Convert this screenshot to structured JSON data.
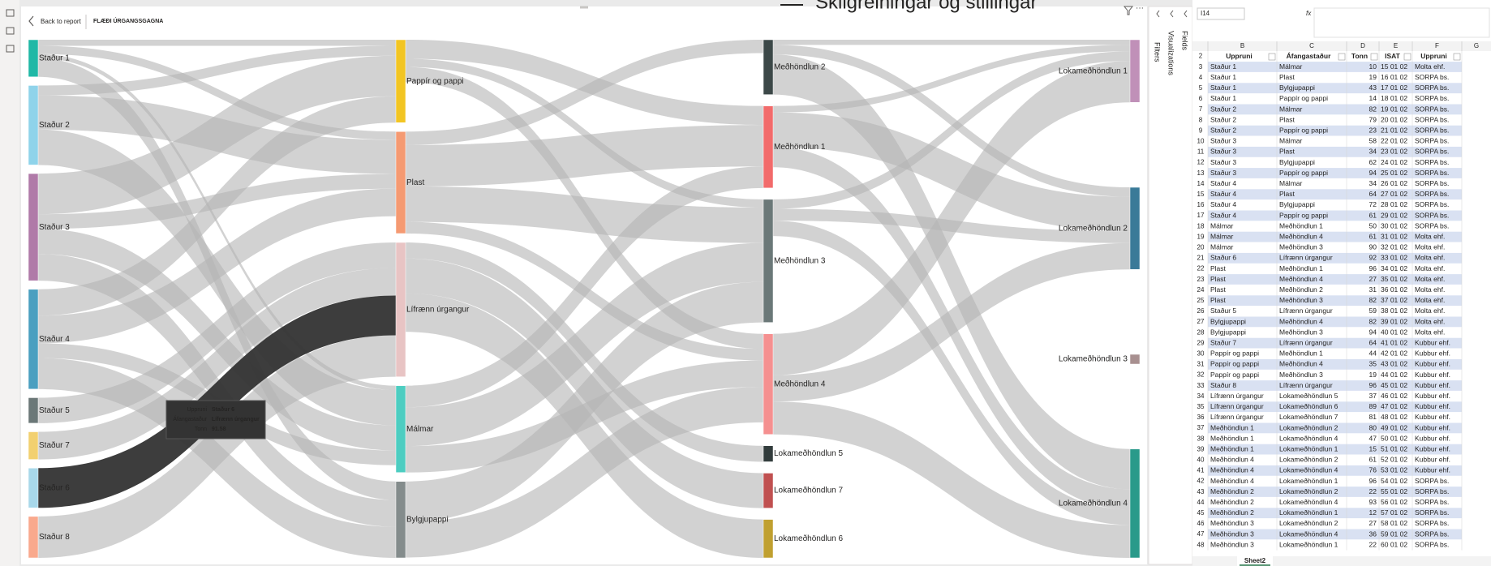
{
  "report": {
    "back": "Back to report",
    "title": "FLÆÐI ÚRGANGSGAGNA",
    "overlay_title": "Skilgreiningar og stillingar"
  },
  "panes": [
    "Filters",
    "Visualizations",
    "Fields"
  ],
  "sankey": {
    "nodes": [
      {
        "name": "Staður 1",
        "color": "#1fb8a6"
      },
      {
        "name": "Staður 2",
        "color": "#8fd3ea"
      },
      {
        "name": "Staður 3",
        "color": "#b07aa8"
      },
      {
        "name": "Staður 4",
        "color": "#4a9fc0"
      },
      {
        "name": "Staður 5",
        "color": "#6b7878"
      },
      {
        "name": "Staður 7",
        "color": "#f2d070"
      },
      {
        "name": "Staður 6",
        "color": "#a8d8ea"
      },
      {
        "name": "Staður 8",
        "color": "#f9a98d"
      },
      {
        "name": "Pappír og pappi",
        "color": "#f2c523"
      },
      {
        "name": "Plast",
        "color": "#f59a72"
      },
      {
        "name": "Lífrænn úrgangur",
        "color": "#e8c4c4"
      },
      {
        "name": "Málmar",
        "color": "#4dcdc1"
      },
      {
        "name": "Bylgjupappi",
        "color": "#848c8c"
      },
      {
        "name": "Meðhöndlun 2",
        "color": "#3c4848"
      },
      {
        "name": "Meðhöndlun 1",
        "color": "#f26b6b"
      },
      {
        "name": "Meðhöndlun 3",
        "color": "#6b7878"
      },
      {
        "name": "Meðhöndlun 4",
        "color": "#f59090"
      },
      {
        "name": "Lokameðhöndlun 5",
        "color": "#323c3c"
      },
      {
        "name": "Lokameðhöndlun 7",
        "color": "#c05050"
      },
      {
        "name": "Lokameðhöndlun 6",
        "color": "#c0a030"
      },
      {
        "name": "Lokameðhöndlun 1",
        "color": "#c090b8"
      },
      {
        "name": "Lokameðhöndlun 2",
        "color": "#3a7a98"
      },
      {
        "name": "Lokameðhöndlun 3",
        "color": "#a89090"
      },
      {
        "name": "Lokameðhöndlun 4",
        "color": "#2a9a8a"
      }
    ],
    "tooltip": {
      "labels": [
        "Uppruni",
        "Áfangastaður",
        "Tonn"
      ],
      "values": [
        "Staður 6",
        "Lífrænn úrgangur",
        91.58
      ]
    }
  },
  "sheet": {
    "name_box": "I14",
    "formula_label": "fx",
    "columns": [
      "B",
      "C",
      "D",
      "E",
      "F",
      "G"
    ],
    "header_row": 2,
    "headers": [
      "Uppruni",
      "Áfangastaður",
      "Tonn",
      "ISAT",
      "Uppruni"
    ],
    "tab": "Sheet2",
    "rows": [
      [
        3,
        "Staður 1",
        "Málmar",
        10,
        "15 01 02",
        "Molta ehf."
      ],
      [
        4,
        "Staður 1",
        "Plast",
        19,
        "16 01 02",
        "SORPA bs."
      ],
      [
        5,
        "Staður 1",
        "Bylgjupappi",
        43,
        "17 01 02",
        "SORPA bs."
      ],
      [
        6,
        "Staður 1",
        "Pappír og pappi",
        14,
        "18 01 02",
        "SORPA bs."
      ],
      [
        7,
        "Staður 2",
        "Málmar",
        82,
        "19 01 02",
        "SORPA bs."
      ],
      [
        8,
        "Staður 2",
        "Plast",
        79,
        "20 01 02",
        "SORPA bs."
      ],
      [
        9,
        "Staður 2",
        "Pappír og pappi",
        23,
        "21 01 02",
        "SORPA bs."
      ],
      [
        10,
        "Staður 3",
        "Málmar",
        58,
        "22 01 02",
        "SORPA bs."
      ],
      [
        11,
        "Staður 3",
        "Plast",
        34,
        "23 01 02",
        "SORPA bs."
      ],
      [
        12,
        "Staður 3",
        "Bylgjupappi",
        62,
        "24 01 02",
        "SORPA bs."
      ],
      [
        13,
        "Staður 3",
        "Pappír og pappi",
        94,
        "25 01 02",
        "SORPA bs."
      ],
      [
        14,
        "Staður 4",
        "Málmar",
        34,
        "26 01 02",
        "SORPA bs."
      ],
      [
        15,
        "Staður 4",
        "Plast",
        64,
        "27 01 02",
        "SORPA bs."
      ],
      [
        16,
        "Staður 4",
        "Bylgjupappi",
        72,
        "28 01 02",
        "SORPA bs."
      ],
      [
        17,
        "Staður 4",
        "Pappír og pappi",
        61,
        "29 01 02",
        "SORPA bs."
      ],
      [
        18,
        "Málmar",
        "Meðhöndlun 1",
        50,
        "30 01 02",
        "SORPA bs."
      ],
      [
        19,
        "Málmar",
        "Meðhöndlun 4",
        61,
        "31 01 02",
        "Molta ehf."
      ],
      [
        20,
        "Málmar",
        "Meðhöndlun 3",
        90,
        "32 01 02",
        "Molta ehf."
      ],
      [
        21,
        "Staður 6",
        "Lífrænn úrgangur",
        92,
        "33 01 02",
        "Molta ehf."
      ],
      [
        22,
        "Plast",
        "Meðhöndlun 1",
        96,
        "34 01 02",
        "Molta ehf."
      ],
      [
        23,
        "Plast",
        "Meðhöndlun 4",
        27,
        "35 01 02",
        "Molta ehf."
      ],
      [
        24,
        "Plast",
        "Meðhöndlun 2",
        31,
        "36 01 02",
        "Molta ehf."
      ],
      [
        25,
        "Plast",
        "Meðhöndlun 3",
        82,
        "37 01 02",
        "Molta ehf."
      ],
      [
        26,
        "Staður 5",
        "Lífrænn úrgangur",
        59,
        "38 01 02",
        "Molta ehf."
      ],
      [
        27,
        "Bylgjupappi",
        "Meðhöndlun 4",
        82,
        "39 01 02",
        "Molta ehf."
      ],
      [
        28,
        "Bylgjupappi",
        "Meðhöndlun 3",
        94,
        "40 01 02",
        "Molta ehf."
      ],
      [
        29,
        "Staður 7",
        "Lífrænn úrgangur",
        64,
        "41 01 02",
        "Kubbur ehf."
      ],
      [
        30,
        "Pappír og pappi",
        "Meðhöndlun 1",
        44,
        "42 01 02",
        "Kubbur ehf."
      ],
      [
        31,
        "Pappír og pappi",
        "Meðhöndlun 4",
        35,
        "43 01 02",
        "Kubbur ehf."
      ],
      [
        32,
        "Pappír og pappi",
        "Meðhöndlun 3",
        19,
        "44 01 02",
        "Kubbur ehf."
      ],
      [
        33,
        "Staður 8",
        "Lífrænn úrgangur",
        96,
        "45 01 02",
        "Kubbur ehf."
      ],
      [
        34,
        "Lífrænn úrgangur",
        "Lokameðhöndlun 5",
        37,
        "46 01 02",
        "Kubbur ehf."
      ],
      [
        35,
        "Lífrænn úrgangur",
        "Lokameðhöndlun 6",
        89,
        "47 01 02",
        "Kubbur ehf."
      ],
      [
        36,
        "Lífrænn úrgangur",
        "Lokameðhöndlun 7",
        81,
        "48 01 02",
        "Kubbur ehf."
      ],
      [
        37,
        "Meðhöndlun 1",
        "Lokameðhöndlun 2",
        80,
        "49 01 02",
        "Kubbur ehf."
      ],
      [
        38,
        "Meðhöndlun 1",
        "Lokameðhöndlun 4",
        47,
        "50 01 02",
        "Kubbur ehf."
      ],
      [
        39,
        "Meðhöndlun 1",
        "Lokameðhöndlun 1",
        15,
        "51 01 02",
        "Kubbur ehf."
      ],
      [
        40,
        "Meðhöndlun 4",
        "Lokameðhöndlun 2",
        61,
        "52 01 02",
        "Kubbur ehf."
      ],
      [
        41,
        "Meðhöndlun 4",
        "Lokameðhöndlun 4",
        76,
        "53 01 02",
        "Kubbur ehf."
      ],
      [
        42,
        "Meðhöndlun 4",
        "Lokameðhöndlun 1",
        96,
        "54 01 02",
        "SORPA bs."
      ],
      [
        43,
        "Meðhöndlun 2",
        "Lokameðhöndlun 2",
        22,
        "55 01 02",
        "SORPA bs."
      ],
      [
        44,
        "Meðhöndlun 2",
        "Lokameðhöndlun 4",
        93,
        "56 01 02",
        "SORPA bs."
      ],
      [
        45,
        "Meðhöndlun 2",
        "Lokameðhöndlun 1",
        12,
        "57 01 02",
        "SORPA bs."
      ],
      [
        46,
        "Meðhöndlun 3",
        "Lokameðhöndlun 2",
        27,
        "58 01 02",
        "SORPA bs."
      ],
      [
        47,
        "Meðhöndlun 3",
        "Lokameðhöndlun 4",
        36,
        "59 01 02",
        "SORPA bs."
      ],
      [
        48,
        "Meðhöndlun 3",
        "Lokameðhöndlun 1",
        22,
        "60 01 02",
        "SORPA bs."
      ]
    ]
  }
}
